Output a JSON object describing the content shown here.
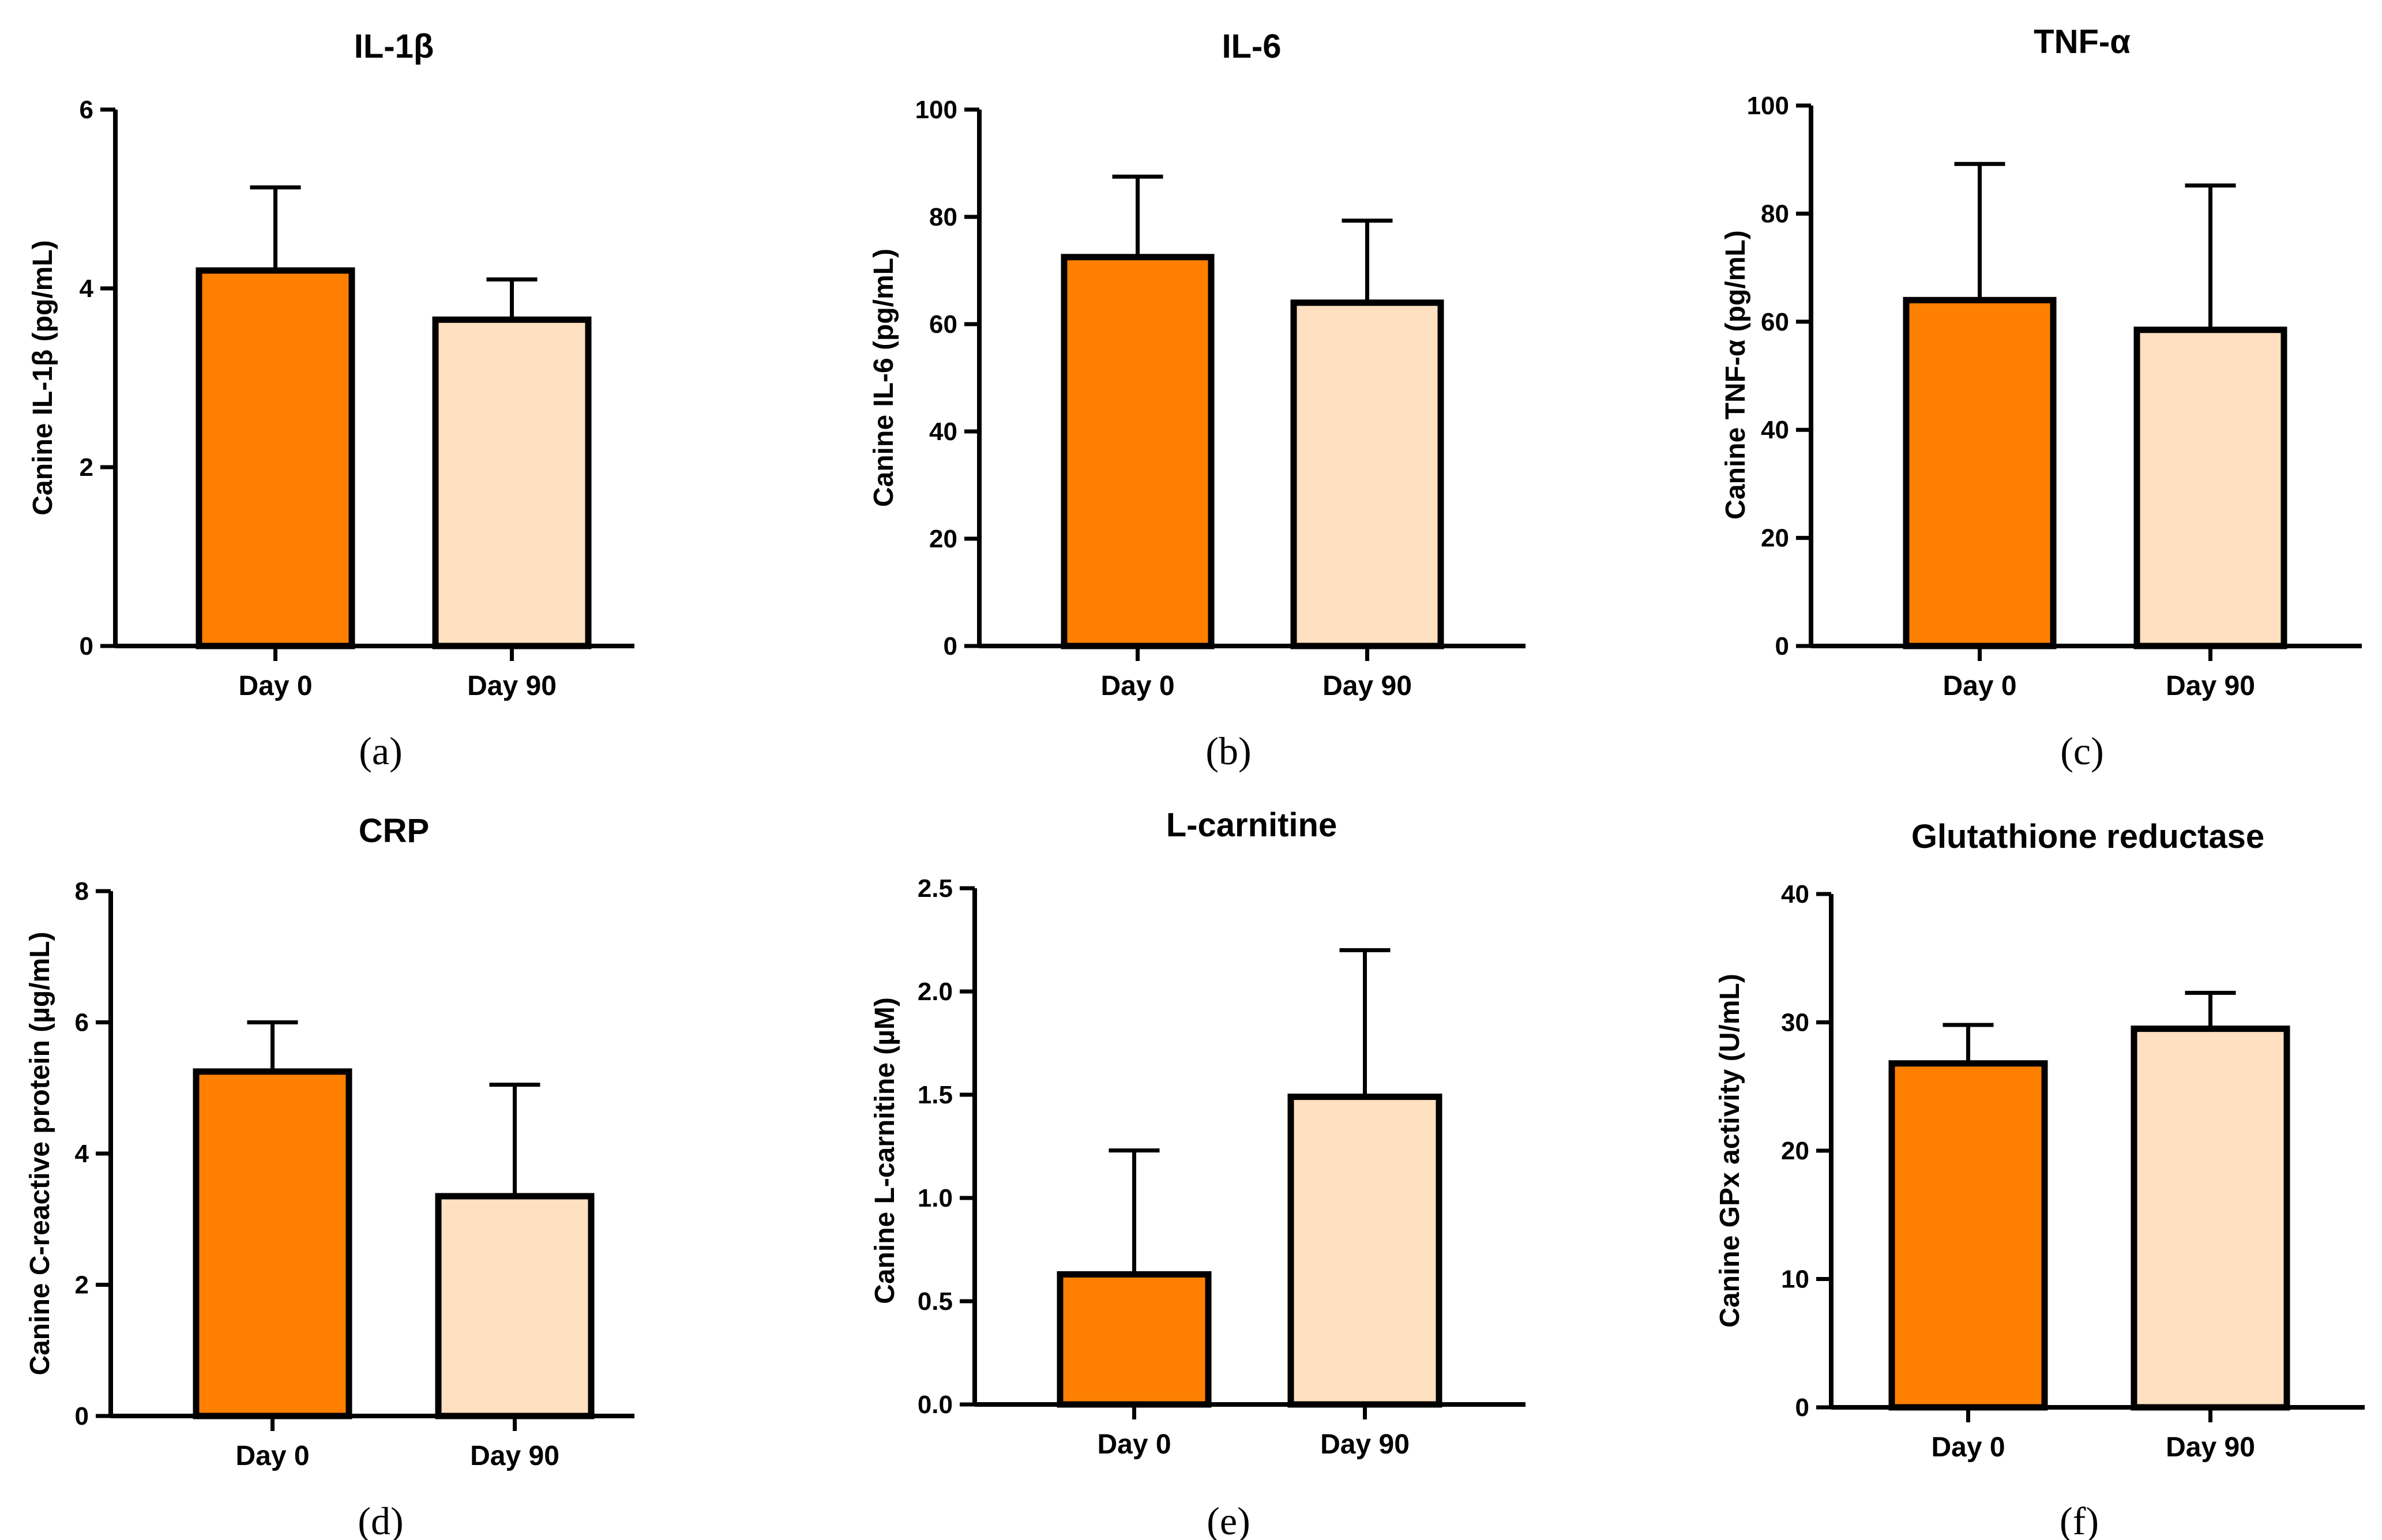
{
  "colors": {
    "day0": "#ff8000",
    "day90": "#ffe0c0",
    "axis": "#000000"
  },
  "chart_data": [
    {
      "type": "bar",
      "title": "IL-1β",
      "ylabel": "Canine IL-1β (pg/mL)",
      "xlabel": "",
      "panel_label": "(a)",
      "categories": [
        "Day 0",
        "Day 90"
      ],
      "values": [
        4.2,
        3.65
      ],
      "errors": [
        0.93,
        0.45
      ],
      "ylim": [
        0,
        6
      ],
      "yticks": [
        0,
        2,
        4,
        6
      ],
      "yticklabels": [
        "0",
        "2",
        "4",
        "6"
      ]
    },
    {
      "type": "bar",
      "title": "IL-6",
      "ylabel": "Canine IL-6 (pg/mL)",
      "xlabel": "",
      "panel_label": "(b)",
      "categories": [
        "Day 0",
        "Day 90"
      ],
      "values": [
        72.5,
        64
      ],
      "errors": [
        15,
        15.3
      ],
      "ylim": [
        0,
        100
      ],
      "yticks": [
        0,
        20,
        40,
        60,
        80,
        100
      ],
      "yticklabels": [
        "0",
        "20",
        "40",
        "60",
        "80",
        "100"
      ]
    },
    {
      "type": "bar",
      "title": "TNF-α",
      "ylabel": "Canine TNF-α (pg/mL)",
      "xlabel": "",
      "panel_label": "(c)",
      "categories": [
        "Day 0",
        "Day 90"
      ],
      "values": [
        64,
        58.5
      ],
      "errors": [
        25.2,
        26.7
      ],
      "ylim": [
        0,
        100
      ],
      "yticks": [
        0,
        20,
        40,
        60,
        80,
        100
      ],
      "yticklabels": [
        "0",
        "20",
        "40",
        "60",
        "80",
        "100"
      ]
    },
    {
      "type": "bar",
      "title": "CRP",
      "ylabel": "Canine C-reactive protein (µg/mL)",
      "xlabel": "",
      "panel_label": "(d)",
      "categories": [
        "Day 0",
        "Day 90"
      ],
      "values": [
        5.25,
        3.35
      ],
      "errors": [
        0.75,
        1.7
      ],
      "ylim": [
        0,
        8
      ],
      "yticks": [
        0,
        2,
        4,
        6,
        8
      ],
      "yticklabels": [
        "0",
        "2",
        "4",
        "6",
        "8"
      ]
    },
    {
      "type": "bar",
      "title": "L-carnitine",
      "ylabel": "Canine L-carnitine (µM)",
      "xlabel": "",
      "panel_label": "(e)",
      "categories": [
        "Day 0",
        "Day 90"
      ],
      "values": [
        0.63,
        1.49
      ],
      "errors": [
        0.6,
        0.71
      ],
      "ylim": [
        0,
        2.5
      ],
      "yticks": [
        0,
        0.5,
        1,
        1.5,
        2,
        2.5
      ],
      "yticklabels": [
        "0.0",
        "0.5",
        "1.0",
        "1.5",
        "2.0",
        "2.5"
      ]
    },
    {
      "type": "bar",
      "title": "Glutathione reductase",
      "ylabel": "Canine GPx activity (U/mL)",
      "xlabel": "",
      "panel_label": "(f)",
      "categories": [
        "Day 0",
        "Day 90"
      ],
      "values": [
        26.8,
        29.5
      ],
      "errors": [
        3,
        2.8
      ],
      "ylim": [
        0,
        40
      ],
      "yticks": [
        0,
        10,
        20,
        30,
        40
      ],
      "yticklabels": [
        "0",
        "10",
        "20",
        "30",
        "40"
      ]
    }
  ]
}
